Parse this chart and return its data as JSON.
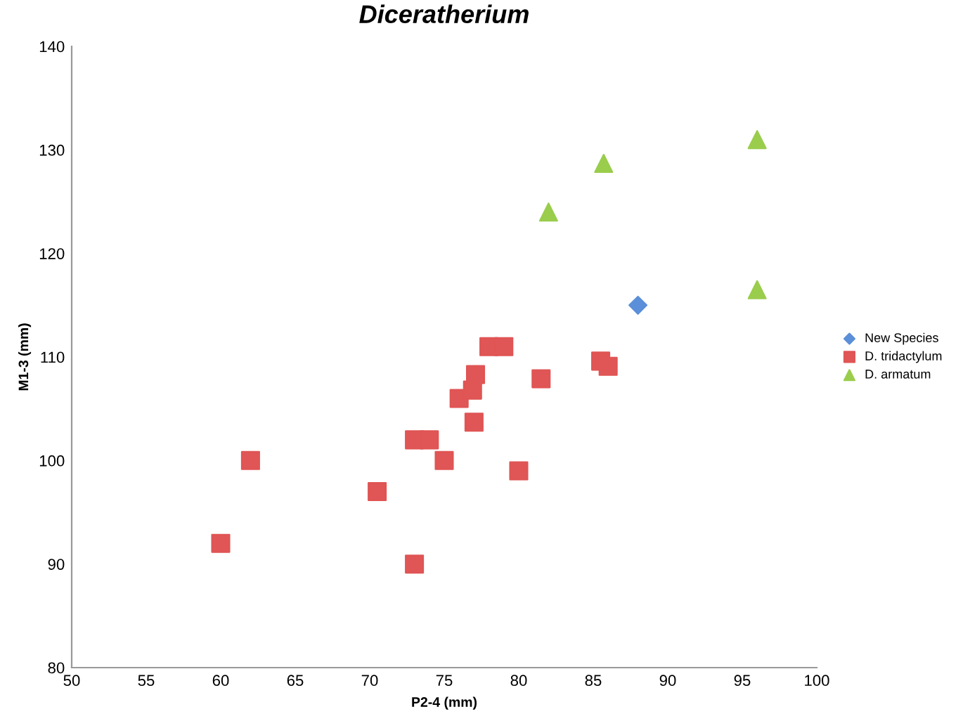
{
  "chart_data": {
    "type": "scatter",
    "title": "Diceratherium",
    "xlabel": "P2-4 (mm)",
    "ylabel": "M1-3 (mm)",
    "xlim": [
      50,
      100
    ],
    "xticks": [
      50,
      55,
      60,
      65,
      70,
      75,
      80,
      85,
      90,
      95,
      100
    ],
    "ylim": [
      80,
      140
    ],
    "yticks": [
      80,
      90,
      100,
      110,
      120,
      130,
      140
    ],
    "grid": false,
    "legend": "right",
    "series": [
      {
        "name": "New Species",
        "color": "#5b8fd9",
        "marker": "diamond",
        "x": [
          88
        ],
        "values": [
          115
        ]
      },
      {
        "name": "D. tridactylum",
        "color": "#e05555",
        "marker": "square",
        "x": [
          60,
          62,
          73,
          70.5,
          73,
          74,
          75,
          80,
          76,
          76.9,
          77,
          77.1,
          78,
          79,
          81.5,
          85.5,
          86
        ],
        "values": [
          92,
          100,
          90,
          97,
          102,
          102,
          100,
          99,
          106,
          106.8,
          103.7,
          108.3,
          111,
          111,
          107.9,
          109.6,
          109.1
        ]
      },
      {
        "name": "D. armatum",
        "color": "#9acd4c",
        "marker": "triangle",
        "x": [
          82,
          85.7,
          96,
          96
        ],
        "values": [
          124,
          128.7,
          131,
          116.5
        ]
      }
    ]
  }
}
